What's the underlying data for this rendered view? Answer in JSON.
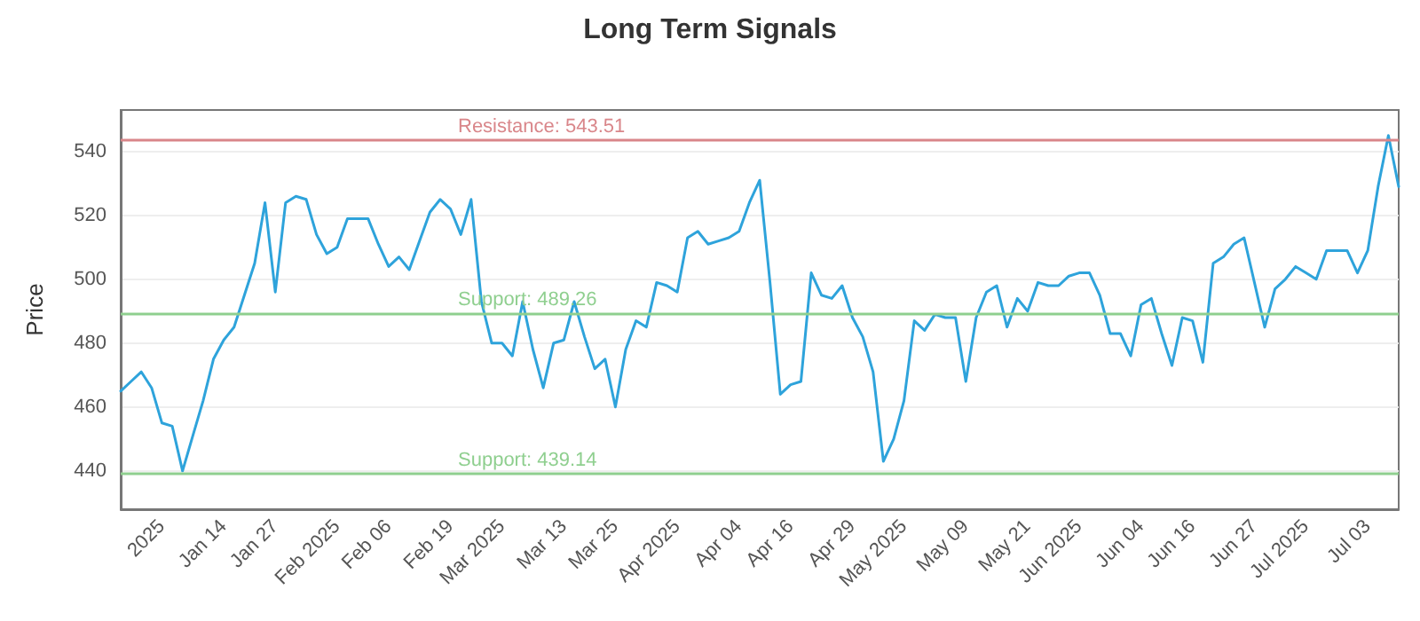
{
  "chart_data": {
    "type": "line",
    "title": "Long Term Signals",
    "ylabel": "Price",
    "categories": [
      null,
      null,
      null,
      null,
      "2025",
      null,
      null,
      null,
      null,
      null,
      "Jan 14",
      null,
      null,
      null,
      null,
      "Jan 27",
      null,
      null,
      null,
      null,
      null,
      "Feb 2025",
      null,
      null,
      null,
      null,
      "Feb 06",
      null,
      null,
      null,
      null,
      null,
      "Feb 19",
      null,
      null,
      null,
      null,
      "Mar 2025",
      null,
      null,
      null,
      null,
      null,
      "Mar 13",
      null,
      null,
      null,
      null,
      "Mar 25",
      null,
      null,
      null,
      null,
      null,
      "Apr 2025",
      null,
      null,
      null,
      null,
      null,
      "Apr 04",
      null,
      null,
      null,
      null,
      "Apr 16",
      null,
      null,
      null,
      null,
      null,
      "Apr 29",
      null,
      null,
      null,
      null,
      "May 2025",
      null,
      null,
      null,
      null,
      null,
      "May 09",
      null,
      null,
      null,
      null,
      null,
      "May 21",
      null,
      null,
      null,
      null,
      "Jun 2025",
      null,
      null,
      null,
      null,
      null,
      "Jun 04",
      null,
      null,
      null,
      null,
      "Jun 16",
      null,
      null,
      null,
      null,
      null,
      "Jun 27",
      null,
      null,
      null,
      null,
      "Jul 2025",
      null,
      null,
      null,
      null,
      null,
      "Jul 03",
      null,
      null,
      null
    ],
    "series": [
      {
        "color": "#2ea3db",
        "values": [
          465,
          468,
          471,
          466,
          455,
          454,
          440,
          451,
          462,
          475,
          481,
          485,
          495,
          505,
          524,
          496,
          524,
          526,
          525,
          514,
          508,
          510,
          519,
          519,
          519,
          511,
          504,
          507,
          503,
          512,
          521,
          525,
          522,
          514,
          525,
          493,
          480,
          480,
          476,
          493,
          478,
          466,
          480,
          481,
          493,
          482,
          472,
          475,
          460,
          478,
          487,
          485,
          499,
          498,
          496,
          513,
          515,
          511,
          512,
          513,
          515,
          524,
          531,
          499,
          464,
          467,
          468,
          502,
          495,
          494,
          498,
          488,
          482,
          471,
          443,
          450,
          462,
          487,
          484,
          489,
          488,
          488,
          468,
          488,
          496,
          498,
          485,
          494,
          490,
          499,
          498,
          498,
          501,
          502,
          502,
          495,
          483,
          483,
          476,
          492,
          494,
          483,
          473,
          488,
          487,
          474,
          505,
          507,
          511,
          513,
          499,
          485,
          497,
          500,
          504,
          502,
          500,
          509,
          509,
          509,
          502,
          509,
          529,
          545,
          529
        ]
      }
    ],
    "ylim": [
      428,
      553
    ],
    "yticks": [
      440,
      460,
      480,
      500,
      520,
      540
    ],
    "grid": "y",
    "marker": "none",
    "ref_lines": [
      {
        "axis": "y",
        "value": 543.51,
        "label": "Resistance: 543.51",
        "color": "#d9868a"
      },
      {
        "axis": "y",
        "value": 489.26,
        "label": "Support: 489.26",
        "color": "#8fcf8f"
      },
      {
        "axis": "y",
        "value": 439.14,
        "label": "Support: 439.14",
        "color": "#8fcf8f"
      }
    ]
  }
}
